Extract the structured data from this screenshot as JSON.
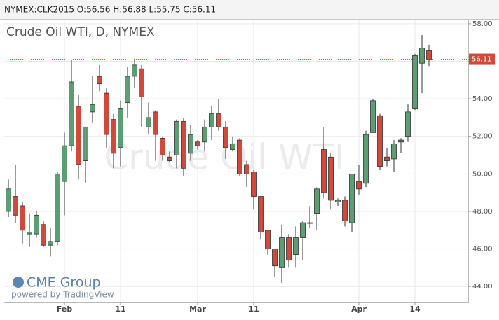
{
  "header": "NYMEX:CLK2015 O:56.56 H:56.88 L:55.75 C:56.11",
  "chart_data": {
    "type": "candlestick",
    "title": "Crude Oil WTI, D, NYMEX",
    "watermark": "Crude Oil WTI",
    "logo": "CME Group",
    "credit": "powered by TradingView",
    "categories": [
      null,
      null,
      null,
      null,
      null,
      null,
      null,
      null,
      "Feb",
      null,
      null,
      null,
      null,
      null,
      null,
      null,
      "11",
      null,
      null,
      null,
      null,
      null,
      null,
      null,
      null,
      null,
      null,
      "Mar",
      null,
      null,
      null,
      null,
      null,
      null,
      null,
      "11",
      null,
      null,
      null,
      null,
      null,
      null,
      null,
      null,
      null,
      null,
      null,
      null,
      null,
      null,
      "Apr",
      null,
      null,
      null,
      null,
      null,
      null,
      null,
      "14",
      null,
      null
    ],
    "open": [
      48.0,
      48.8,
      48.3,
      46.8,
      46.8,
      47.3,
      46.2,
      46.4,
      49.6,
      51.5,
      53.6,
      50.7,
      53.3,
      55.2,
      54.3,
      52.9,
      51.4,
      53.8,
      55.2,
      55.6,
      52.5,
      53.3,
      51.9,
      50.9,
      51.0,
      52.8,
      51.1,
      51.7,
      51.7,
      52.5,
      53.2,
      52.5,
      51.3,
      51.8,
      50.5,
      50.1,
      48.8,
      47.0,
      46.0,
      45.0,
      46.6,
      45.7,
      46.6,
      47.4,
      47.9,
      51.3,
      50.9,
      48.5,
      48.6,
      47.4,
      49.6,
      49.5,
      52.2,
      53.1,
      50.9,
      50.8,
      51.7,
      52.0,
      53.5,
      55.9,
      56.56
    ],
    "high": [
      49.7,
      50.5,
      48.5,
      47.9,
      48.0,
      47.5,
      47.1,
      50.1,
      52.2,
      56.1,
      54.2,
      52.5,
      55.2,
      55.8,
      54.6,
      53.2,
      53.9,
      55.7,
      56.1,
      55.8,
      53.8,
      53.4,
      52.0,
      51.2,
      52.9,
      53.0,
      52.6,
      51.8,
      52.9,
      53.6,
      54.0,
      52.8,
      52.0,
      51.9,
      50.7,
      50.2,
      48.8,
      47.0,
      46.0,
      47.3,
      46.8,
      47.2,
      47.5,
      48.3,
      49.3,
      52.5,
      51.1,
      48.7,
      48.8,
      50.0,
      50.5,
      52.3,
      54.0,
      53.2,
      51.4,
      51.8,
      51.9,
      53.7,
      56.4,
      57.4,
      56.88
    ],
    "low": [
      47.7,
      47.4,
      46.3,
      46.1,
      46.6,
      46.1,
      45.6,
      46.2,
      47.8,
      51.2,
      49.7,
      49.5,
      52.7,
      54.4,
      51.4,
      50.3,
      50.4,
      53.0,
      54.6,
      52.5,
      52.1,
      50.7,
      50.7,
      50.6,
      50.3,
      49.9,
      50.7,
      51.3,
      51.2,
      51.8,
      52.3,
      50.8,
      51.2,
      49.9,
      49.3,
      48.1,
      46.5,
      45.7,
      44.5,
      44.2,
      45.0,
      45.0,
      45.4,
      47.1,
      47.0,
      48.7,
      48.1,
      48.3,
      47.2,
      46.9,
      48.9,
      49.3,
      52.2,
      50.2,
      50.4,
      50.1,
      51.1,
      51.7,
      53.4,
      54.3,
      55.75
    ],
    "close": [
      49.2,
      47.8,
      47.0,
      46.9,
      47.8,
      46.2,
      46.4,
      50.0,
      51.5,
      54.9,
      50.5,
      52.5,
      53.7,
      54.8,
      52.1,
      51.1,
      53.5,
      55.2,
      55.8,
      54.1,
      53.0,
      52.1,
      51.0,
      50.7,
      52.8,
      50.3,
      52.1,
      51.5,
      52.5,
      53.2,
      52.5,
      51.4,
      51.6,
      50.0,
      50.0,
      48.8,
      46.9,
      46.0,
      45.1,
      46.6,
      45.4,
      46.6,
      47.4,
      47.4,
      49.2,
      49.0,
      48.6,
      48.6,
      47.5,
      50.0,
      49.2,
      52.1,
      53.9,
      50.4,
      50.7,
      51.6,
      51.8,
      53.3,
      56.3,
      56.7,
      56.11
    ],
    "up_color": "#5b9e73",
    "down_color": "#d2483a",
    "last_price": 56.11,
    "ylim": [
      43.15,
      58.22
    ],
    "yticks": [
      {
        "value": 44,
        "label": "44.00"
      },
      {
        "value": 46,
        "label": "46.00"
      },
      {
        "value": 48,
        "label": "48.00"
      },
      {
        "value": 50,
        "label": "50.00"
      },
      {
        "value": 52,
        "label": "52.00"
      },
      {
        "value": 54,
        "label": "54.00"
      },
      {
        "value": 56,
        "label": "56.00"
      },
      {
        "value": 58,
        "label": "58.00"
      }
    ],
    "grid": true
  }
}
